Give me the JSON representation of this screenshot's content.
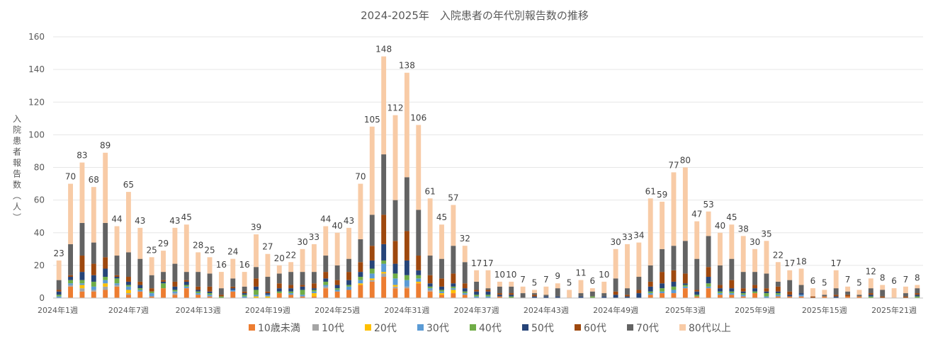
{
  "chart_data": {
    "type": "bar",
    "stacked": true,
    "title": "2024-2025年　入院患者の年代別報告数の推移",
    "xlabel": "",
    "ylabel": "入院患者報告数（人）",
    "ylim": [
      0,
      160
    ],
    "yticks": [
      0,
      20,
      40,
      60,
      80,
      100,
      120,
      140,
      160
    ],
    "grid": true,
    "legend_position": "bottom",
    "xtick_labels": [
      "2024年1週",
      "2024年7週",
      "2024年13週",
      "2024年19週",
      "2024年25週",
      "2024年31週",
      "2024年37週",
      "2024年43週",
      "2024年49週",
      "2025年3週",
      "2025年9週",
      "2025年15週",
      "2025年21週"
    ],
    "xtick_every": 6,
    "totals": [
      23,
      70,
      83,
      68,
      89,
      44,
      65,
      43,
      25,
      29,
      43,
      45,
      28,
      25,
      16,
      24,
      16,
      39,
      27,
      20,
      22,
      30,
      33,
      44,
      40,
      43,
      70,
      105,
      148,
      112,
      138,
      106,
      61,
      45,
      57,
      32,
      17,
      17,
      10,
      10,
      7,
      5,
      7,
      9,
      5,
      11,
      6,
      10,
      30,
      33,
      34,
      61,
      59,
      77,
      80,
      47,
      53,
      40,
      45,
      38,
      30,
      35,
      22,
      17,
      18,
      6,
      5,
      17,
      7,
      5,
      12,
      8,
      6,
      7,
      8
    ],
    "series": [
      {
        "name": "10歳未満",
        "color": "#ed7d31",
        "values": [
          0,
          7,
          4,
          4,
          5,
          7,
          2,
          4,
          1,
          6,
          2,
          6,
          2,
          1,
          0,
          4,
          0,
          0,
          0,
          3,
          2,
          1,
          1,
          6,
          4,
          5,
          8,
          10,
          13,
          6,
          6,
          9,
          4,
          2,
          3,
          2,
          0,
          0,
          1,
          0,
          0,
          0,
          0,
          0,
          0,
          0,
          0,
          0,
          0,
          0,
          0,
          2,
          3,
          3,
          6,
          1,
          6,
          2,
          2,
          1,
          3,
          0,
          1,
          1,
          1,
          0,
          1,
          0,
          1,
          1,
          0,
          0,
          0,
          0,
          0
        ]
      },
      {
        "name": "10代",
        "color": "#a5a5a5",
        "values": [
          0,
          1,
          2,
          1,
          2,
          1,
          1,
          0,
          0,
          0,
          1,
          0,
          0,
          0,
          0,
          0,
          0,
          0,
          0,
          0,
          0,
          0,
          0,
          1,
          0,
          0,
          0,
          1,
          2,
          1,
          1,
          0,
          1,
          0,
          0,
          0,
          0,
          0,
          0,
          0,
          0,
          0,
          0,
          0,
          0,
          0,
          0,
          0,
          0,
          0,
          0,
          0,
          0,
          0,
          0,
          0,
          0,
          0,
          0,
          0,
          0,
          0,
          0,
          0,
          0,
          0,
          0,
          0,
          0,
          0,
          0,
          0,
          0,
          0,
          0
        ]
      },
      {
        "name": "20代",
        "color": "#ffc000",
        "values": [
          0,
          0,
          2,
          0,
          2,
          0,
          2,
          0,
          0,
          0,
          0,
          0,
          0,
          0,
          0,
          0,
          0,
          1,
          1,
          0,
          0,
          0,
          2,
          0,
          0,
          0,
          1,
          1,
          1,
          1,
          0,
          1,
          0,
          1,
          2,
          0,
          0,
          0,
          0,
          0,
          0,
          0,
          0,
          0,
          0,
          0,
          0,
          0,
          0,
          0,
          0,
          0,
          0,
          0,
          0,
          0,
          0,
          0,
          0,
          0,
          0,
          0,
          0,
          0,
          0,
          0,
          0,
          0,
          0,
          0,
          0,
          0,
          0,
          0,
          0
        ]
      },
      {
        "name": "30代",
        "color": "#5b9bd5",
        "values": [
          1,
          1,
          1,
          2,
          2,
          1,
          2,
          1,
          2,
          0,
          1,
          1,
          1,
          1,
          0,
          1,
          1,
          1,
          1,
          0,
          1,
          1,
          1,
          1,
          1,
          2,
          2,
          3,
          5,
          4,
          4,
          2,
          1,
          1,
          1,
          1,
          1,
          1,
          0,
          0,
          0,
          0,
          0,
          0,
          0,
          0,
          0,
          0,
          0,
          0,
          0,
          1,
          1,
          2,
          1,
          0,
          1,
          1,
          1,
          1,
          0,
          1,
          1,
          0,
          1,
          0,
          0,
          0,
          0,
          0,
          0,
          0,
          0,
          0,
          0
        ]
      },
      {
        "name": "40代",
        "color": "#70ad47",
        "values": [
          1,
          2,
          2,
          3,
          2,
          3,
          1,
          1,
          1,
          3,
          1,
          1,
          1,
          1,
          1,
          0,
          1,
          3,
          0,
          1,
          1,
          3,
          1,
          2,
          1,
          1,
          2,
          3,
          2,
          3,
          3,
          2,
          1,
          1,
          1,
          1,
          1,
          1,
          0,
          1,
          0,
          0,
          0,
          0,
          0,
          0,
          1,
          0,
          0,
          0,
          0,
          1,
          2,
          2,
          1,
          1,
          2,
          1,
          1,
          1,
          1,
          2,
          1,
          0,
          0,
          0,
          0,
          0,
          0,
          0,
          1,
          0,
          0,
          0,
          1
        ]
      },
      {
        "name": "50代",
        "color": "#264478",
        "values": [
          2,
          2,
          5,
          4,
          5,
          1,
          2,
          2,
          0,
          1,
          2,
          2,
          1,
          1,
          0,
          1,
          1,
          2,
          1,
          2,
          2,
          2,
          1,
          2,
          2,
          3,
          3,
          5,
          10,
          6,
          9,
          3,
          2,
          2,
          2,
          2,
          2,
          2,
          1,
          1,
          0,
          1,
          1,
          1,
          0,
          1,
          0,
          1,
          2,
          1,
          3,
          3,
          3,
          3,
          1,
          2,
          4,
          2,
          2,
          1,
          2,
          1,
          1,
          1,
          1,
          0,
          0,
          1,
          0,
          0,
          1,
          0,
          0,
          0,
          1
        ]
      },
      {
        "name": "60代",
        "color": "#9e480e",
        "values": [
          1,
          1,
          10,
          7,
          7,
          1,
          3,
          2,
          2,
          1,
          3,
          1,
          2,
          3,
          1,
          1,
          1,
          5,
          1,
          3,
          2,
          1,
          3,
          4,
          3,
          5,
          6,
          9,
          18,
          14,
          18,
          9,
          5,
          5,
          6,
          3,
          1,
          1,
          1,
          1,
          0,
          1,
          0,
          0,
          0,
          0,
          0,
          0,
          2,
          1,
          2,
          3,
          7,
          7,
          6,
          1,
          6,
          2,
          5,
          2,
          2,
          2,
          3,
          2,
          0,
          1,
          0,
          1,
          1,
          0,
          1,
          1,
          0,
          1,
          1
        ]
      },
      {
        "name": "70代",
        "color": "#636363",
        "values": [
          6,
          19,
          20,
          13,
          21,
          12,
          15,
          14,
          8,
          5,
          11,
          5,
          9,
          8,
          4,
          5,
          3,
          7,
          9,
          6,
          8,
          8,
          7,
          10,
          9,
          8,
          14,
          19,
          37,
          25,
          33,
          28,
          12,
          12,
          17,
          13,
          5,
          1,
          4,
          4,
          3,
          1,
          1,
          5,
          0,
          2,
          3,
          2,
          8,
          4,
          8,
          10,
          14,
          15,
          20,
          19,
          19,
          12,
          13,
          10,
          8,
          9,
          3,
          7,
          5,
          0,
          1,
          4,
          2,
          1,
          3,
          4,
          0,
          2,
          3
        ]
      },
      {
        "name": "80代以上",
        "color": "#f8cba6",
        "values": [
          12,
          37,
          37,
          34,
          43,
          18,
          37,
          19,
          11,
          13,
          22,
          29,
          12,
          10,
          10,
          12,
          9,
          20,
          14,
          5,
          6,
          14,
          17,
          18,
          20,
          19,
          34,
          54,
          60,
          52,
          64,
          52,
          35,
          21,
          25,
          10,
          7,
          11,
          3,
          3,
          4,
          2,
          5,
          3,
          5,
          8,
          2,
          7,
          18,
          27,
          21,
          41,
          29,
          45,
          45,
          23,
          15,
          20,
          21,
          22,
          14,
          20,
          12,
          6,
          10,
          5,
          3,
          11,
          3,
          3,
          6,
          3,
          6,
          4,
          2
        ]
      }
    ]
  }
}
